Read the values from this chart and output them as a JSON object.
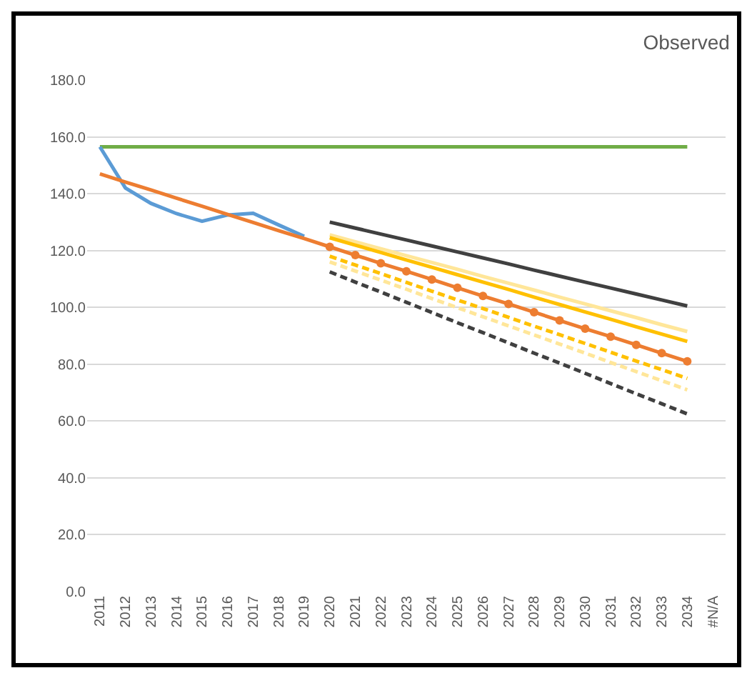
{
  "chart_data": {
    "type": "line",
    "title": "Observed",
    "categories": [
      "2011",
      "2012",
      "2013",
      "2014",
      "2015",
      "2016",
      "2017",
      "2018",
      "2019",
      "2020",
      "2021",
      "2022",
      "2023",
      "2024",
      "2025",
      "2026",
      "2027",
      "2028",
      "2029",
      "2030",
      "2031",
      "2032",
      "2033",
      "2034",
      "#N/A"
    ],
    "ylim": [
      0,
      180
    ],
    "yticks": [
      {
        "value": 0,
        "label": "0.0"
      },
      {
        "value": 20,
        "label": "20.0"
      },
      {
        "value": 40,
        "label": "40.0"
      },
      {
        "value": 60,
        "label": "60.0"
      },
      {
        "value": 80,
        "label": "80.0"
      },
      {
        "value": 100,
        "label": "100.0"
      },
      {
        "value": 120,
        "label": "120.0"
      },
      {
        "value": 140,
        "label": "140.0"
      },
      {
        "value": 160,
        "label": "160.0"
      },
      {
        "value": 180,
        "label": "180.0"
      }
    ],
    "grid": "y",
    "series": [
      {
        "color": "#70ad47",
        "line_style": "solid",
        "values": [
          156.5,
          156.5,
          156.5,
          156.5,
          156.5,
          156.5,
          156.5,
          156.5,
          156.5,
          156.5,
          156.5,
          156.5,
          156.5,
          156.5,
          156.5,
          156.5,
          156.5,
          156.5,
          156.5,
          156.5,
          156.5,
          156.5,
          156.5,
          156.5,
          null
        ]
      },
      {
        "color": "#ffe699",
        "line_style": "solid",
        "values": [
          null,
          null,
          null,
          null,
          null,
          null,
          null,
          null,
          null,
          125.5,
          123.1,
          120.6,
          118.2,
          115.8,
          113.4,
          110.9,
          108.5,
          106.1,
          103.6,
          101.2,
          98.8,
          96.4,
          93.9,
          91.5,
          null
        ]
      },
      {
        "color": "#ffe699",
        "line_style": "dashed",
        "values": [
          null,
          null,
          null,
          null,
          null,
          null,
          null,
          null,
          null,
          116,
          112.8,
          109.6,
          106.4,
          103.1,
          99.9,
          96.7,
          93.5,
          90.3,
          87.1,
          83.9,
          80.6,
          77.4,
          74.2,
          71.0,
          null
        ]
      },
      {
        "color": "#404040",
        "line_style": "solid",
        "values": [
          null,
          null,
          null,
          null,
          null,
          null,
          null,
          null,
          null,
          130,
          127.9,
          125.8,
          123.7,
          121.6,
          119.5,
          117.4,
          115.3,
          113.1,
          111.0,
          108.9,
          106.8,
          104.7,
          102.6,
          100.5,
          null
        ]
      },
      {
        "color": "#404040",
        "line_style": "dashed",
        "values": [
          null,
          null,
          null,
          null,
          null,
          null,
          null,
          null,
          null,
          112.5,
          108.9,
          105.4,
          101.8,
          98.2,
          94.6,
          91.1,
          87.5,
          83.9,
          80.4,
          76.8,
          73.2,
          69.6,
          66.1,
          62.5,
          null
        ]
      },
      {
        "color": "#ffc000",
        "line_style": "solid",
        "values": [
          null,
          null,
          null,
          null,
          null,
          null,
          null,
          null,
          null,
          124.5,
          121.9,
          119.3,
          116.7,
          114.1,
          111.5,
          108.9,
          106.3,
          103.6,
          101.0,
          98.4,
          95.8,
          93.2,
          90.6,
          88.0,
          null
        ]
      },
      {
        "color": "#ffc000",
        "line_style": "dashed",
        "values": [
          null,
          null,
          null,
          null,
          null,
          null,
          null,
          null,
          null,
          118,
          114.9,
          111.9,
          108.8,
          105.7,
          102.6,
          99.6,
          96.5,
          93.4,
          90.4,
          87.3,
          84.2,
          81.1,
          78.1,
          75.0,
          null
        ]
      },
      {
        "color": "#5b9bd5",
        "line_style": "solid",
        "values": [
          156.5,
          142,
          136.6,
          133,
          130.3,
          132.5,
          133.1,
          129,
          125,
          null,
          null,
          null,
          null,
          null,
          null,
          null,
          null,
          null,
          null,
          null,
          null,
          null,
          null,
          null,
          null
        ]
      },
      {
        "color": "#ed7d31",
        "line_style": "solid",
        "values": [
          147,
          144.1,
          141.3,
          138.4,
          135.6,
          132.7,
          129.9,
          127.0,
          124.2,
          121.3,
          null,
          null,
          null,
          null,
          null,
          null,
          null,
          null,
          null,
          null,
          null,
          null,
          null,
          null,
          null
        ]
      },
      {
        "color": "#ed7d31",
        "line_style": "solid",
        "marker": "circle",
        "values": [
          null,
          null,
          null,
          null,
          null,
          null,
          null,
          null,
          null,
          121.3,
          118.4,
          115.5,
          112.7,
          109.8,
          106.9,
          104.0,
          101.2,
          98.3,
          95.4,
          92.5,
          89.7,
          86.8,
          83.9,
          81.0,
          null
        ]
      }
    ]
  }
}
